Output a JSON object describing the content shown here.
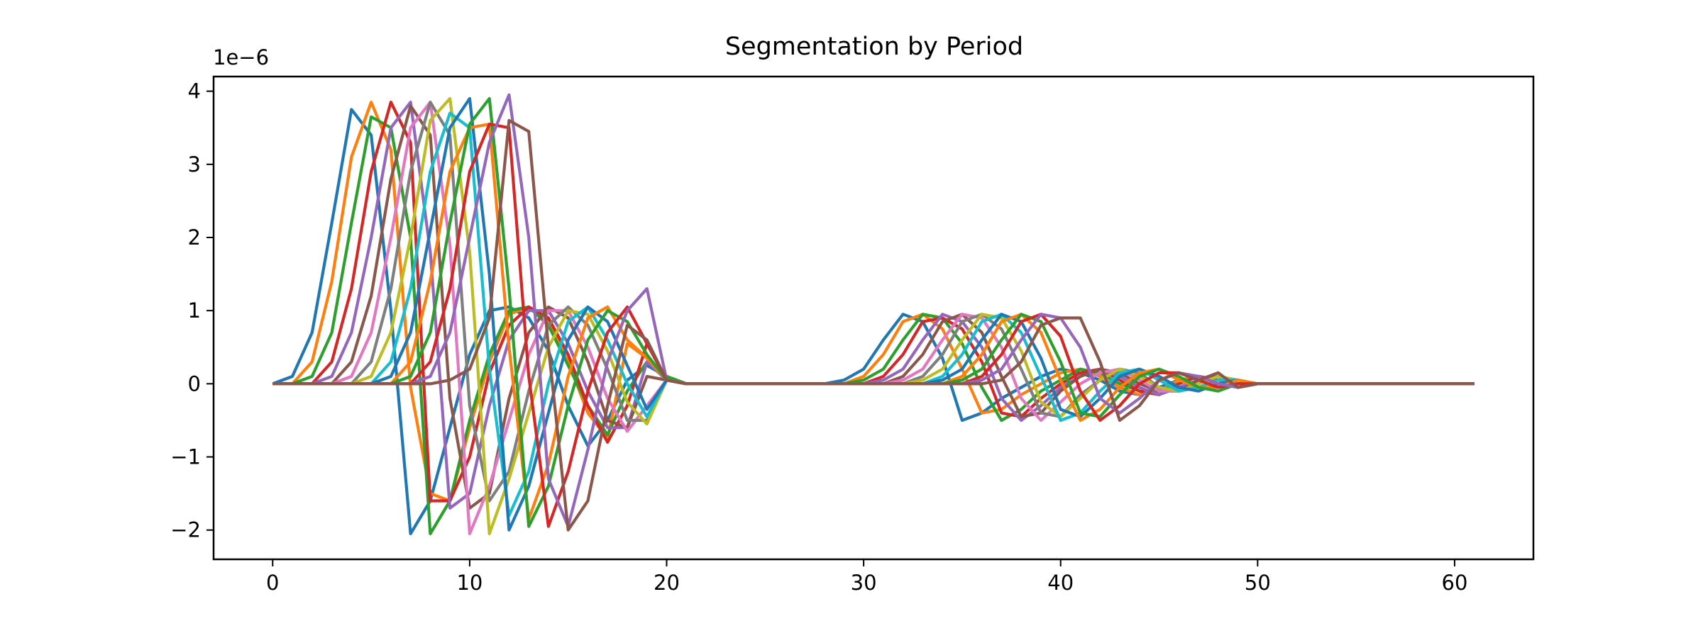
{
  "chart_data": {
    "type": "line",
    "title": "Segmentation by Period",
    "xlabel": "",
    "ylabel": "",
    "y_offset_label": "1e−6",
    "xlim": [
      -3,
      64
    ],
    "ylim": [
      -2.4,
      4.2
    ],
    "xticks": [
      0,
      10,
      20,
      30,
      40,
      50,
      60
    ],
    "xtick_labels": [
      "0",
      "10",
      "20",
      "30",
      "40",
      "50",
      "60"
    ],
    "yticks": [
      -2,
      -1,
      0,
      1,
      2,
      3,
      4
    ],
    "ytick_labels": [
      "−2",
      "−1",
      "0",
      "1",
      "2",
      "3",
      "4"
    ],
    "grid": false,
    "legend": "none",
    "x": [
      0,
      1,
      2,
      3,
      4,
      5,
      6,
      7,
      8,
      9,
      10,
      11,
      12,
      13,
      14,
      15,
      16,
      17,
      18,
      19,
      20,
      21,
      22,
      23,
      24,
      25,
      26,
      27,
      28,
      29,
      30,
      31,
      32,
      33,
      34,
      35,
      36,
      37,
      38,
      39,
      40,
      41,
      42,
      43,
      44,
      45,
      46,
      47,
      48,
      49,
      50,
      51,
      52,
      53,
      54,
      55,
      56,
      57,
      58,
      59,
      60,
      61
    ],
    "series": [
      {
        "color": "#1f77b4",
        "values": [
          0,
          0.1,
          0.7,
          2.2,
          3.75,
          3.4,
          1.0,
          -2.05,
          -1.6,
          -0.6,
          0.4,
          1.0,
          1.05,
          0.9,
          0.45,
          -0.3,
          -0.85,
          -0.5,
          0.05,
          0.25,
          0.1,
          0,
          0,
          0,
          0,
          0,
          0,
          0,
          0,
          0.05,
          0.2,
          0.6,
          0.95,
          0.85,
          0.35,
          -0.5,
          -0.4,
          -0.2,
          -0.05,
          0.1,
          0.2,
          0.15,
          0.05,
          -0.1,
          -0.15,
          -0.05,
          0.05,
          0.1,
          0.05,
          0,
          0,
          0,
          0,
          0,
          0,
          0,
          0,
          0,
          0,
          0,
          0,
          0
        ]
      },
      {
        "color": "#ff7f0e",
        "values": [
          0,
          0,
          0.3,
          1.4,
          3.1,
          3.85,
          3.2,
          -0.05,
          -1.5,
          -1.6,
          -0.6,
          0.3,
          0.95,
          1.05,
          0.85,
          0.3,
          -0.4,
          -0.75,
          0.55,
          0.35,
          0.1,
          0,
          0,
          0,
          0,
          0,
          0,
          0,
          0,
          0,
          0.1,
          0.4,
          0.85,
          0.95,
          0.75,
          0.2,
          -0.4,
          -0.35,
          -0.15,
          0,
          0.15,
          0.2,
          0.1,
          -0.05,
          -0.15,
          -0.1,
          0.05,
          0.1,
          0.05,
          0,
          0,
          0,
          0,
          0,
          0,
          0,
          0,
          0,
          0,
          0,
          0,
          0
        ]
      },
      {
        "color": "#2ca02c",
        "values": [
          0,
          0,
          0.1,
          0.7,
          2.2,
          3.65,
          3.5,
          2.0,
          -2.05,
          -1.6,
          -0.5,
          0.4,
          1.0,
          1.05,
          0.8,
          0.25,
          -0.3,
          -0.7,
          -0.1,
          0.3,
          0.1,
          0,
          0,
          0,
          0,
          0,
          0,
          0,
          0,
          0,
          0.05,
          0.2,
          0.6,
          0.95,
          0.9,
          0.55,
          -0.05,
          -0.5,
          -0.35,
          -0.1,
          0.05,
          0.2,
          0.15,
          0,
          -0.1,
          -0.1,
          0,
          0.1,
          0.05,
          0,
          0,
          0,
          0,
          0,
          0,
          0,
          0,
          0,
          0,
          0,
          0,
          0
        ]
      },
      {
        "color": "#d62728",
        "values": [
          0,
          0,
          0,
          0.3,
          1.3,
          2.9,
          3.85,
          3.3,
          -1.6,
          -1.6,
          -1.0,
          0.15,
          0.8,
          1.05,
          0.9,
          0.4,
          -0.3,
          -0.8,
          -0.3,
          0.55,
          0.05,
          0,
          0,
          0,
          0,
          0,
          0,
          0,
          0,
          0,
          0,
          0.1,
          0.4,
          0.85,
          0.9,
          0.75,
          0.3,
          -0.4,
          -0.45,
          -0.2,
          0,
          0.15,
          0.2,
          0.05,
          -0.1,
          -0.15,
          0,
          0.1,
          0.05,
          0,
          0,
          0,
          0,
          0,
          0,
          0,
          0,
          0,
          0,
          0,
          0,
          0
        ]
      },
      {
        "color": "#9467bd",
        "values": [
          0,
          0,
          0,
          0.1,
          0.7,
          2.0,
          3.5,
          3.85,
          1.8,
          -1.7,
          -1.5,
          -0.3,
          0.6,
          1.0,
          1.0,
          0.55,
          -0.1,
          -0.6,
          -0.6,
          0.3,
          0.05,
          0,
          0,
          0,
          0,
          0,
          0,
          0,
          0,
          0,
          0,
          0.05,
          0.2,
          0.6,
          0.95,
          0.85,
          0.5,
          -0.2,
          -0.5,
          -0.3,
          -0.05,
          0.1,
          0.2,
          0.1,
          -0.05,
          -0.15,
          -0.05,
          0.05,
          0.1,
          0,
          0,
          0,
          0,
          0,
          0,
          0,
          0,
          0,
          0,
          0,
          0,
          0
        ]
      },
      {
        "color": "#8c564b",
        "values": [
          0,
          0,
          0,
          0,
          0.3,
          1.2,
          2.8,
          3.8,
          3.4,
          -0.2,
          -1.7,
          -1.5,
          -0.2,
          0.7,
          1.05,
          0.9,
          0.3,
          -0.5,
          -0.6,
          0.1,
          0.05,
          0,
          0,
          0,
          0,
          0,
          0,
          0,
          0,
          0,
          0,
          0,
          0.1,
          0.4,
          0.85,
          0.95,
          0.7,
          0.1,
          -0.45,
          -0.4,
          -0.1,
          0.1,
          0.2,
          0.15,
          0,
          -0.1,
          -0.1,
          0.05,
          0.1,
          0,
          0,
          0,
          0,
          0,
          0,
          0,
          0,
          0,
          0,
          0,
          0,
          0
        ]
      },
      {
        "color": "#e377c2",
        "values": [
          0,
          0,
          0,
          0,
          0.1,
          0.7,
          2.0,
          3.5,
          3.85,
          1.9,
          -2.05,
          -1.4,
          -0.5,
          0.4,
          1.0,
          1.0,
          0.5,
          -0.2,
          -0.65,
          -0.3,
          0.05,
          0,
          0,
          0,
          0,
          0,
          0,
          0,
          0,
          0,
          0,
          0,
          0.05,
          0.2,
          0.6,
          0.95,
          0.9,
          0.5,
          -0.2,
          -0.5,
          -0.25,
          0,
          0.15,
          0.2,
          0.05,
          -0.1,
          -0.1,
          0,
          0.1,
          0.05,
          0,
          0,
          0,
          0,
          0,
          0,
          0,
          0,
          0,
          0,
          0,
          0
        ]
      },
      {
        "color": "#7f7f7f",
        "values": [
          0,
          0,
          0,
          0,
          0,
          0.3,
          1.3,
          2.9,
          3.85,
          3.4,
          -0.3,
          -1.6,
          -1.2,
          -0.1,
          0.8,
          1.05,
          0.8,
          0.2,
          -0.5,
          -0.5,
          0.05,
          0,
          0,
          0,
          0,
          0,
          0,
          0,
          0,
          0,
          0,
          0,
          0,
          0.1,
          0.4,
          0.85,
          0.95,
          0.75,
          0.2,
          -0.4,
          -0.45,
          -0.15,
          0.05,
          0.2,
          0.15,
          -0.05,
          -0.1,
          -0.05,
          0.05,
          0.05,
          0,
          0,
          0,
          0,
          0,
          0,
          0,
          0,
          0,
          0,
          0,
          0
        ]
      },
      {
        "color": "#bcbd22",
        "values": [
          0,
          0,
          0,
          0,
          0,
          0.1,
          0.7,
          2.0,
          3.6,
          3.9,
          1.8,
          -2.05,
          -1.3,
          -0.4,
          0.5,
          1.0,
          0.95,
          0.45,
          -0.25,
          -0.55,
          0.05,
          0,
          0,
          0,
          0,
          0,
          0,
          0,
          0,
          0,
          0,
          0,
          0,
          0.05,
          0.2,
          0.6,
          0.95,
          0.9,
          0.45,
          -0.25,
          -0.45,
          -0.2,
          0.05,
          0.2,
          0.1,
          -0.05,
          -0.1,
          0,
          0.1,
          0.05,
          0,
          0,
          0,
          0,
          0,
          0,
          0,
          0,
          0,
          0,
          0,
          0
        ]
      },
      {
        "color": "#17becf",
        "values": [
          0,
          0,
          0,
          0,
          0,
          0,
          0.3,
          1.3,
          2.9,
          3.7,
          3.5,
          0.2,
          -1.8,
          -1.2,
          0,
          0.85,
          1.05,
          0.6,
          0,
          -0.45,
          0.05,
          0,
          0,
          0,
          0,
          0,
          0,
          0,
          0,
          0,
          0,
          0,
          0,
          0,
          0.1,
          0.4,
          0.85,
          0.95,
          0.7,
          0.1,
          -0.5,
          -0.4,
          -0.1,
          0.15,
          0.2,
          0.05,
          -0.1,
          -0.05,
          0.05,
          0.05,
          0,
          0,
          0,
          0,
          0,
          0,
          0,
          0,
          0,
          0,
          0,
          0
        ]
      },
      {
        "color": "#1f77b4",
        "values": [
          0,
          0,
          0,
          0,
          0,
          0,
          0.1,
          0.7,
          2.1,
          3.5,
          3.9,
          1.5,
          -2.0,
          -1.4,
          -0.4,
          0.6,
          1.05,
          0.85,
          0.25,
          -0.35,
          0.05,
          0,
          0,
          0,
          0,
          0,
          0,
          0,
          0,
          0,
          0,
          0,
          0,
          0,
          0.05,
          0.2,
          0.6,
          0.95,
          0.85,
          0.35,
          -0.35,
          -0.45,
          -0.2,
          0.1,
          0.2,
          0.1,
          -0.05,
          -0.1,
          0,
          0.05,
          0,
          0,
          0,
          0,
          0,
          0,
          0,
          0,
          0,
          0,
          0,
          0
        ]
      },
      {
        "color": "#ff7f0e",
        "values": [
          0,
          0,
          0,
          0,
          0,
          0,
          0,
          0.3,
          1.4,
          2.9,
          3.5,
          3.55,
          0.5,
          -1.85,
          -1.1,
          0.1,
          0.9,
          1.05,
          0.6,
          0.35,
          0.05,
          0,
          0,
          0,
          0,
          0,
          0,
          0,
          0,
          0,
          0,
          0,
          0,
          0,
          0,
          0.1,
          0.4,
          0.85,
          0.95,
          0.7,
          0.05,
          -0.5,
          -0.35,
          -0.05,
          0.15,
          0.2,
          0.05,
          -0.05,
          -0.05,
          0.05,
          0,
          0,
          0,
          0,
          0,
          0,
          0,
          0,
          0,
          0,
          0,
          0
        ]
      },
      {
        "color": "#2ca02c",
        "values": [
          0,
          0,
          0,
          0,
          0,
          0,
          0,
          0.1,
          0.7,
          2.2,
          3.55,
          3.9,
          1.3,
          -1.95,
          -1.4,
          -0.3,
          0.6,
          1.0,
          0.85,
          0.4,
          0.05,
          0,
          0,
          0,
          0,
          0,
          0,
          0,
          0,
          0,
          0,
          0,
          0,
          0,
          0,
          0.05,
          0.2,
          0.6,
          0.95,
          0.85,
          0.3,
          -0.4,
          -0.45,
          -0.15,
          0.1,
          0.2,
          0.1,
          -0.05,
          -0.1,
          0,
          0,
          0,
          0,
          0,
          0,
          0,
          0,
          0,
          0,
          0,
          0,
          0
        ]
      },
      {
        "color": "#d62728",
        "values": [
          0,
          0,
          0,
          0,
          0,
          0,
          0,
          0,
          0.3,
          1.3,
          2.9,
          3.55,
          3.5,
          0.1,
          -1.95,
          -1.2,
          -0.1,
          0.7,
          1.05,
          0.55,
          0.05,
          0,
          0,
          0,
          0,
          0,
          0,
          0,
          0,
          0,
          0,
          0,
          0,
          0,
          0,
          0,
          0.1,
          0.4,
          0.85,
          0.95,
          0.65,
          -0.1,
          -0.5,
          -0.3,
          0,
          0.15,
          0.15,
          0.05,
          -0.05,
          0,
          0,
          0,
          0,
          0,
          0,
          0,
          0,
          0,
          0,
          0,
          0,
          0
        ]
      },
      {
        "color": "#9467bd",
        "values": [
          0,
          0,
          0,
          0,
          0,
          0,
          0,
          0,
          0.1,
          0.7,
          2.0,
          3.3,
          3.95,
          2.0,
          -1.3,
          -1.95,
          -0.9,
          0.3,
          1.0,
          1.3,
          0.05,
          0,
          0,
          0,
          0,
          0,
          0,
          0,
          0,
          0,
          0,
          0,
          0,
          0,
          0,
          0,
          0.05,
          0.2,
          0.6,
          0.95,
          0.9,
          0.5,
          -0.2,
          -0.4,
          -0.2,
          0.05,
          0.15,
          0.1,
          0,
          -0.05,
          0,
          0,
          0,
          0,
          0,
          0,
          0,
          0,
          0,
          0,
          0,
          0
        ]
      },
      {
        "color": "#8c564b",
        "values": [
          0,
          0,
          0,
          0,
          0,
          0,
          0,
          0,
          0,
          0.05,
          0.2,
          0.9,
          3.6,
          3.45,
          0.5,
          -2.0,
          -1.6,
          -0.3,
          0.8,
          0.6,
          0.05,
          0,
          0,
          0,
          0,
          0,
          0,
          0,
          0,
          0,
          0,
          0,
          0,
          0,
          0,
          0,
          0,
          0.05,
          0.3,
          0.8,
          0.9,
          0.9,
          0.3,
          -0.5,
          -0.3,
          0.05,
          0.15,
          0.05,
          0.15,
          -0.05,
          0,
          0,
          0,
          0,
          0,
          0,
          0,
          0,
          0,
          0,
          0,
          0
        ]
      }
    ]
  }
}
